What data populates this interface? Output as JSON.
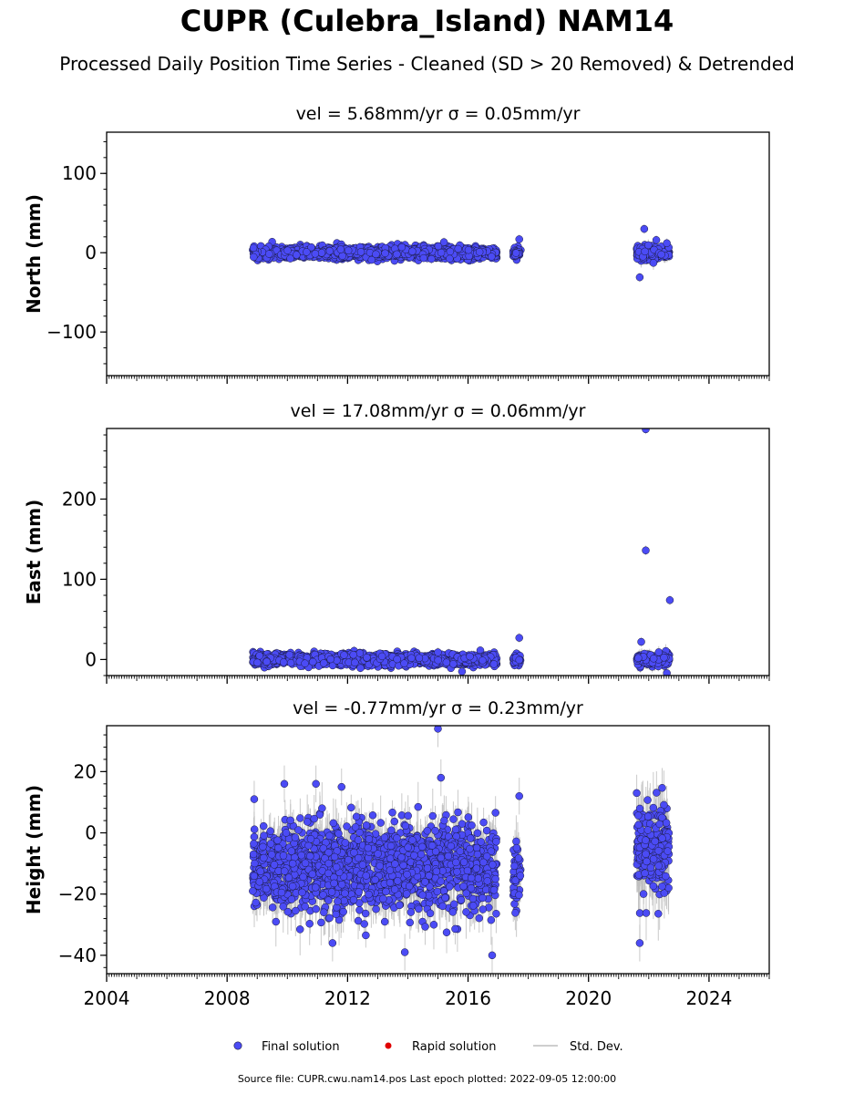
{
  "header": {
    "title": "CUPR (Culebra_Island) NAM14",
    "subtitle": "Processed Daily Position Time Series - Cleaned (SD > 20 Removed) & Detrended"
  },
  "footer": {
    "source": "Source file: CUPR.cwu.nam14.pos  Last epoch plotted: 2022-09-05 12:00:00"
  },
  "legend": {
    "final": "Final solution",
    "rapid": "Rapid solution",
    "std": "Std. Dev."
  },
  "colors": {
    "final_fill": "#4b4bf5",
    "final_edge": "#1a1a3a",
    "rapid": "#e00000",
    "std": "#bdbdbd"
  },
  "chart_data": [
    {
      "type": "scatter",
      "title_prefix": "vel = 5.68mm/yr",
      "title_sigma": "σ = 0.05mm/yr",
      "ylabel": "North (mm)",
      "xlim": [
        2004.0,
        2026.0
      ],
      "ylim": [
        -155,
        152
      ],
      "yticks": [
        -100,
        0,
        100
      ],
      "xticks": [
        2004,
        2008,
        2012,
        2016,
        2020,
        2024
      ],
      "grid": false,
      "segments": [
        {
          "start": 2008.85,
          "end": 2016.95,
          "mean": 0,
          "spread": 3.5,
          "err": 4
        },
        {
          "start": 2017.5,
          "end": 2017.75,
          "mean": 0,
          "spread": 3,
          "err": 4
        },
        {
          "start": 2021.6,
          "end": 2022.68,
          "mean": -1,
          "spread": 4,
          "err": 6
        }
      ],
      "outliers": [
        {
          "x": 2013.8,
          "y": 7
        },
        {
          "x": 2017.7,
          "y": 17
        },
        {
          "x": 2021.85,
          "y": 30
        },
        {
          "x": 2022.25,
          "y": 16
        },
        {
          "x": 2021.7,
          "y": -31
        },
        {
          "x": 2022.6,
          "y": 12
        }
      ]
    },
    {
      "type": "scatter",
      "title_prefix": "vel = 17.08mm/yr",
      "title_sigma": "σ = 0.06mm/yr",
      "ylabel": "East (mm)",
      "xlim": [
        2004.0,
        2026.0
      ],
      "ylim": [
        -20,
        288
      ],
      "yticks": [
        0,
        100,
        200
      ],
      "xticks": [
        2004,
        2008,
        2012,
        2016,
        2020,
        2024
      ],
      "grid": false,
      "segments": [
        {
          "start": 2008.85,
          "end": 2016.95,
          "mean": 0,
          "spread": 3.5,
          "err": 4
        },
        {
          "start": 2017.5,
          "end": 2017.75,
          "mean": 0,
          "spread": 3,
          "err": 4
        },
        {
          "start": 2021.6,
          "end": 2022.68,
          "mean": 0,
          "spread": 4,
          "err": 6
        }
      ],
      "outliers": [
        {
          "x": 2021.9,
          "y": 287
        },
        {
          "x": 2021.9,
          "y": 136
        },
        {
          "x": 2022.7,
          "y": 74
        },
        {
          "x": 2017.7,
          "y": 27
        },
        {
          "x": 2021.75,
          "y": 22
        },
        {
          "x": 2015.8,
          "y": -15
        },
        {
          "x": 2022.6,
          "y": -17
        },
        {
          "x": 2015.0,
          "y": 9
        }
      ]
    },
    {
      "type": "scatter",
      "title_prefix": "vel = -0.77mm/yr",
      "title_sigma": "σ = 0.23mm/yr",
      "ylabel": "Height (mm)",
      "xlim": [
        2004.0,
        2026.0
      ],
      "ylim": [
        -46,
        35
      ],
      "yticks": [
        -40,
        -20,
        0,
        20
      ],
      "xticks": [
        2004,
        2008,
        2012,
        2016,
        2020,
        2024
      ],
      "grid": false,
      "segments": [
        {
          "start": 2008.85,
          "end": 2016.95,
          "mean": -11,
          "spread": 7,
          "err": 6
        },
        {
          "start": 2017.5,
          "end": 2017.75,
          "mean": -16,
          "spread": 6,
          "err": 6
        },
        {
          "start": 2021.6,
          "end": 2022.68,
          "mean": -5,
          "spread": 7,
          "err": 8
        }
      ],
      "outliers": [
        {
          "x": 2015.0,
          "y": 34
        },
        {
          "x": 2017.7,
          "y": 12
        },
        {
          "x": 2021.6,
          "y": 13
        },
        {
          "x": 2008.9,
          "y": 11
        },
        {
          "x": 2015.1,
          "y": 18
        },
        {
          "x": 2016.8,
          "y": -40
        },
        {
          "x": 2013.9,
          "y": -39
        },
        {
          "x": 2021.7,
          "y": -36
        },
        {
          "x": 2011.5,
          "y": -36
        },
        {
          "x": 2009.9,
          "y": 16
        },
        {
          "x": 2010.95,
          "y": 16
        },
        {
          "x": 2011.8,
          "y": 15
        }
      ]
    }
  ]
}
